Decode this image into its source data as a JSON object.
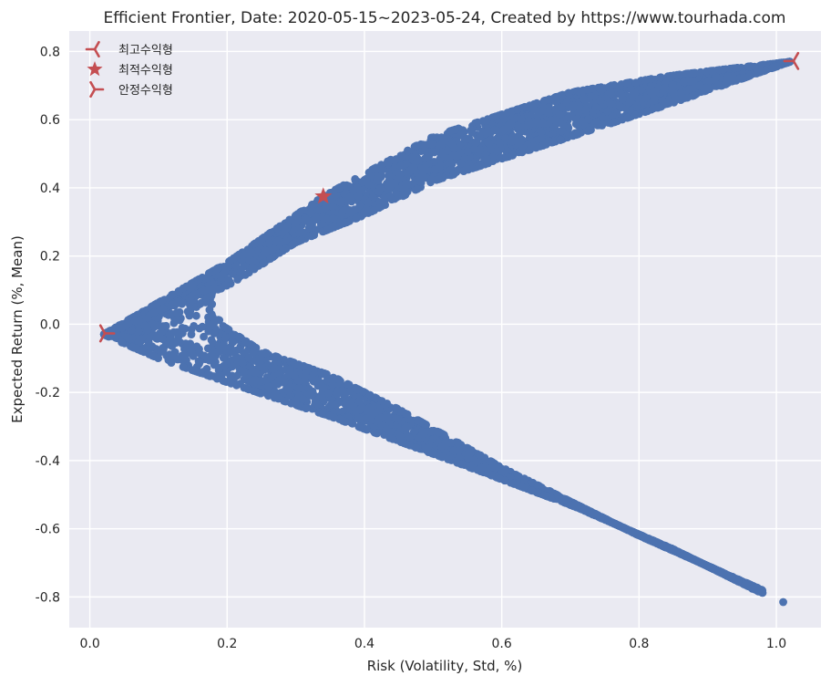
{
  "chart_data": {
    "type": "scatter",
    "title": "Efficient Frontier,  Date: 2020-05-15~2023-05-24, Created by https://www.tourhada.com",
    "xlabel": "Risk (Volatility, Std, %)",
    "ylabel": "Expected Return (%, Mean)",
    "xlim": [
      -0.03,
      1.065
    ],
    "ylim": [
      -0.89,
      0.86
    ],
    "x_ticks": [
      0.0,
      0.2,
      0.4,
      0.6,
      0.8,
      1.0
    ],
    "x_tick_labels": [
      "0.0",
      "0.2",
      "0.4",
      "0.6",
      "0.8",
      "1.0"
    ],
    "y_ticks": [
      -0.8,
      -0.6,
      -0.4,
      -0.2,
      0.0,
      0.2,
      0.4,
      0.6,
      0.8
    ],
    "y_tick_labels": [
      "-0.8",
      "-0.6",
      "-0.4",
      "-0.2",
      "0.0",
      "0.2",
      "0.4",
      "0.6",
      "0.8"
    ],
    "grid": true,
    "legend_position": "top-left",
    "colors": {
      "background": "#eaeaf2",
      "grid": "#ffffff",
      "points": "#4c72b0",
      "markers": "#c44e52",
      "text": "#262626"
    },
    "series": [
      {
        "role": "portfolios",
        "marker": "dot",
        "upper_branch": {
          "upper_edge": [
            [
              0.02,
              -0.03
            ],
            [
              0.2,
              0.18
            ],
            [
              0.34,
              0.375
            ],
            [
              0.5,
              0.55
            ],
            [
              0.7,
              0.68
            ],
            [
              0.85,
              0.73
            ],
            [
              1.02,
              0.77
            ]
          ],
          "lower_edge": [
            [
              0.02,
              -0.03
            ],
            [
              0.15,
              0.08
            ],
            [
              0.2,
              0.11
            ],
            [
              0.3,
              0.24
            ],
            [
              0.4,
              0.32
            ],
            [
              0.5,
              0.42
            ],
            [
              0.7,
              0.55
            ],
            [
              0.85,
              0.65
            ],
            [
              1.02,
              0.77
            ]
          ]
        },
        "lower_branch": {
          "upper_edge": [
            [
              0.02,
              -0.03
            ],
            [
              0.18,
              0.11
            ],
            [
              0.19,
              0.0
            ],
            [
              0.25,
              -0.08
            ],
            [
              0.35,
              -0.15
            ],
            [
              0.45,
              -0.25
            ],
            [
              0.6,
              -0.42
            ],
            [
              0.8,
              -0.62
            ],
            [
              0.98,
              -0.78
            ]
          ],
          "lower_edge": [
            [
              0.02,
              -0.03
            ],
            [
              0.1,
              -0.1
            ],
            [
              0.2,
              -0.17
            ],
            [
              0.35,
              -0.27
            ],
            [
              0.5,
              -0.38
            ],
            [
              0.7,
              -0.53
            ],
            [
              0.85,
              -0.66
            ],
            [
              0.98,
              -0.79
            ]
          ]
        },
        "outlier_points": [
          [
            1.01,
            -0.815
          ],
          [
            0.98,
            -0.788
          ],
          [
            0.965,
            -0.776
          ]
        ]
      },
      {
        "name": "최고수익형",
        "marker": "tri_left",
        "points": [
          [
            1.025,
            0.772
          ]
        ]
      },
      {
        "name": "최적수익형",
        "marker": "star",
        "points": [
          [
            0.34,
            0.375
          ]
        ]
      },
      {
        "name": "안정수익형",
        "marker": "tri_right",
        "points": [
          [
            0.022,
            -0.027
          ]
        ]
      }
    ]
  }
}
